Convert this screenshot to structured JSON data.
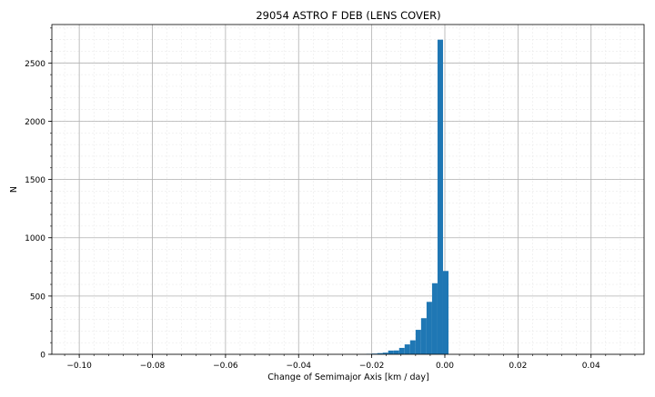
{
  "chart_data": {
    "type": "histogram",
    "title": "29054 ASTRO F DEB (LENS COVER)",
    "xlabel": "Change of Semimajor Axis [km / day]",
    "ylabel": "N",
    "xlim": [
      -0.1075,
      0.0545
    ],
    "ylim": [
      0,
      2830
    ],
    "x_ticks": [
      -0.1,
      -0.08,
      -0.06,
      -0.04,
      -0.02,
      0.0,
      0.02,
      0.04
    ],
    "x_tick_labels": [
      "−0.10",
      "−0.08",
      "−0.06",
      "−0.04",
      "−0.02",
      "0.00",
      "0.02",
      "0.04"
    ],
    "y_ticks": [
      0,
      500,
      1000,
      1500,
      2000,
      2500
    ],
    "y_tick_labels": [
      "0",
      "500",
      "1000",
      "1500",
      "2000",
      "2500"
    ],
    "grid": true,
    "minor_grid": true,
    "bar_color": "#1f77b4",
    "bins": [
      {
        "x0": -0.0215,
        "x1": -0.02,
        "count": 4
      },
      {
        "x0": -0.02,
        "x1": -0.0185,
        "count": 6
      },
      {
        "x0": -0.0185,
        "x1": -0.017,
        "count": 10
      },
      {
        "x0": -0.017,
        "x1": -0.0155,
        "count": 14
      },
      {
        "x0": -0.0155,
        "x1": -0.014,
        "count": 32
      },
      {
        "x0": -0.014,
        "x1": -0.0125,
        "count": 33
      },
      {
        "x0": -0.0125,
        "x1": -0.011,
        "count": 55
      },
      {
        "x0": -0.011,
        "x1": -0.0095,
        "count": 85
      },
      {
        "x0": -0.0095,
        "x1": -0.008,
        "count": 120
      },
      {
        "x0": -0.008,
        "x1": -0.0065,
        "count": 210
      },
      {
        "x0": -0.0065,
        "x1": -0.005,
        "count": 310
      },
      {
        "x0": -0.005,
        "x1": -0.0035,
        "count": 450
      },
      {
        "x0": -0.0035,
        "x1": -0.002,
        "count": 610
      },
      {
        "x0": -0.002,
        "x1": -0.0005,
        "count": 2700
      },
      {
        "x0": -0.0005,
        "x1": 0.001,
        "count": 715
      }
    ]
  }
}
